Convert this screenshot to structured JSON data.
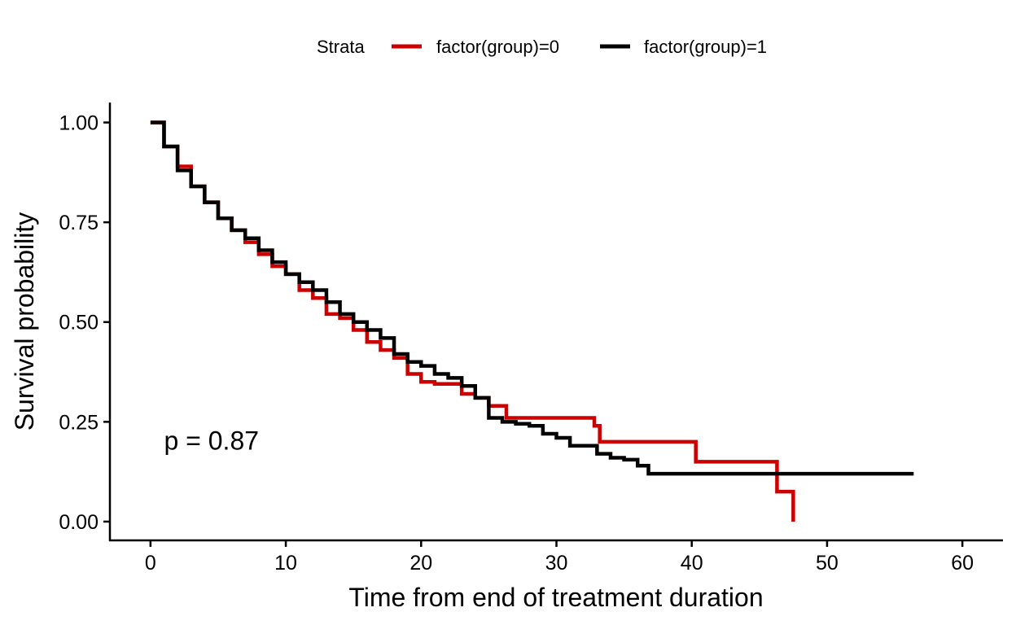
{
  "chart_data": {
    "type": "line",
    "step": true,
    "xlabel": "Time from end of treatment duration",
    "ylabel": "Survival probability",
    "xlim": [
      -3,
      63
    ],
    "ylim": [
      -0.047,
      1.05
    ],
    "xticks": [
      0,
      10,
      20,
      30,
      40,
      50,
      60
    ],
    "yticks": [
      0.0,
      0.25,
      0.5,
      0.75,
      1.0
    ],
    "xtick_labels": [
      "0",
      "10",
      "20",
      "30",
      "40",
      "50",
      "60"
    ],
    "ytick_labels": [
      "0.00",
      "0.25",
      "0.50",
      "0.75",
      "1.00"
    ],
    "grid": false,
    "legend": {
      "title": "Strata",
      "position": "top",
      "entries": [
        "factor(group)=0",
        "factor(group)=1"
      ]
    },
    "annotations": [
      {
        "text": "p = 0.87",
        "x": 1.0,
        "y": 0.18
      }
    ],
    "series": [
      {
        "name": "factor(group)=0",
        "color": "#CC0000",
        "x": [
          0,
          1,
          2,
          3,
          4,
          5,
          6,
          7,
          8,
          9,
          10,
          11,
          12,
          13,
          14,
          15,
          16,
          17,
          18,
          19,
          20,
          21,
          22,
          23,
          24,
          25,
          26.3,
          32.8,
          33.2,
          40.3,
          46.3,
          47.5
        ],
        "y": [
          1.0,
          0.94,
          0.89,
          0.84,
          0.8,
          0.76,
          0.73,
          0.7,
          0.67,
          0.64,
          0.62,
          0.58,
          0.56,
          0.52,
          0.51,
          0.48,
          0.45,
          0.43,
          0.41,
          0.37,
          0.35,
          0.345,
          0.345,
          0.32,
          0.31,
          0.29,
          0.26,
          0.24,
          0.2,
          0.15,
          0.075,
          0.0
        ]
      },
      {
        "name": "factor(group)=1",
        "color": "#000000",
        "x": [
          0,
          1,
          2,
          3,
          4,
          5,
          6,
          7,
          8,
          9,
          10,
          11,
          12,
          13,
          14,
          15,
          16,
          17,
          18,
          19,
          20,
          21,
          22,
          23,
          24,
          25,
          26,
          27,
          28,
          29,
          30,
          31,
          32,
          33,
          34,
          35,
          36,
          36.8,
          56.4
        ],
        "y": [
          1.0,
          0.94,
          0.88,
          0.84,
          0.8,
          0.76,
          0.73,
          0.71,
          0.68,
          0.65,
          0.62,
          0.6,
          0.58,
          0.55,
          0.52,
          0.5,
          0.48,
          0.46,
          0.42,
          0.4,
          0.39,
          0.37,
          0.36,
          0.34,
          0.31,
          0.26,
          0.25,
          0.245,
          0.24,
          0.22,
          0.21,
          0.19,
          0.19,
          0.17,
          0.16,
          0.155,
          0.14,
          0.12,
          0.12
        ]
      }
    ]
  }
}
